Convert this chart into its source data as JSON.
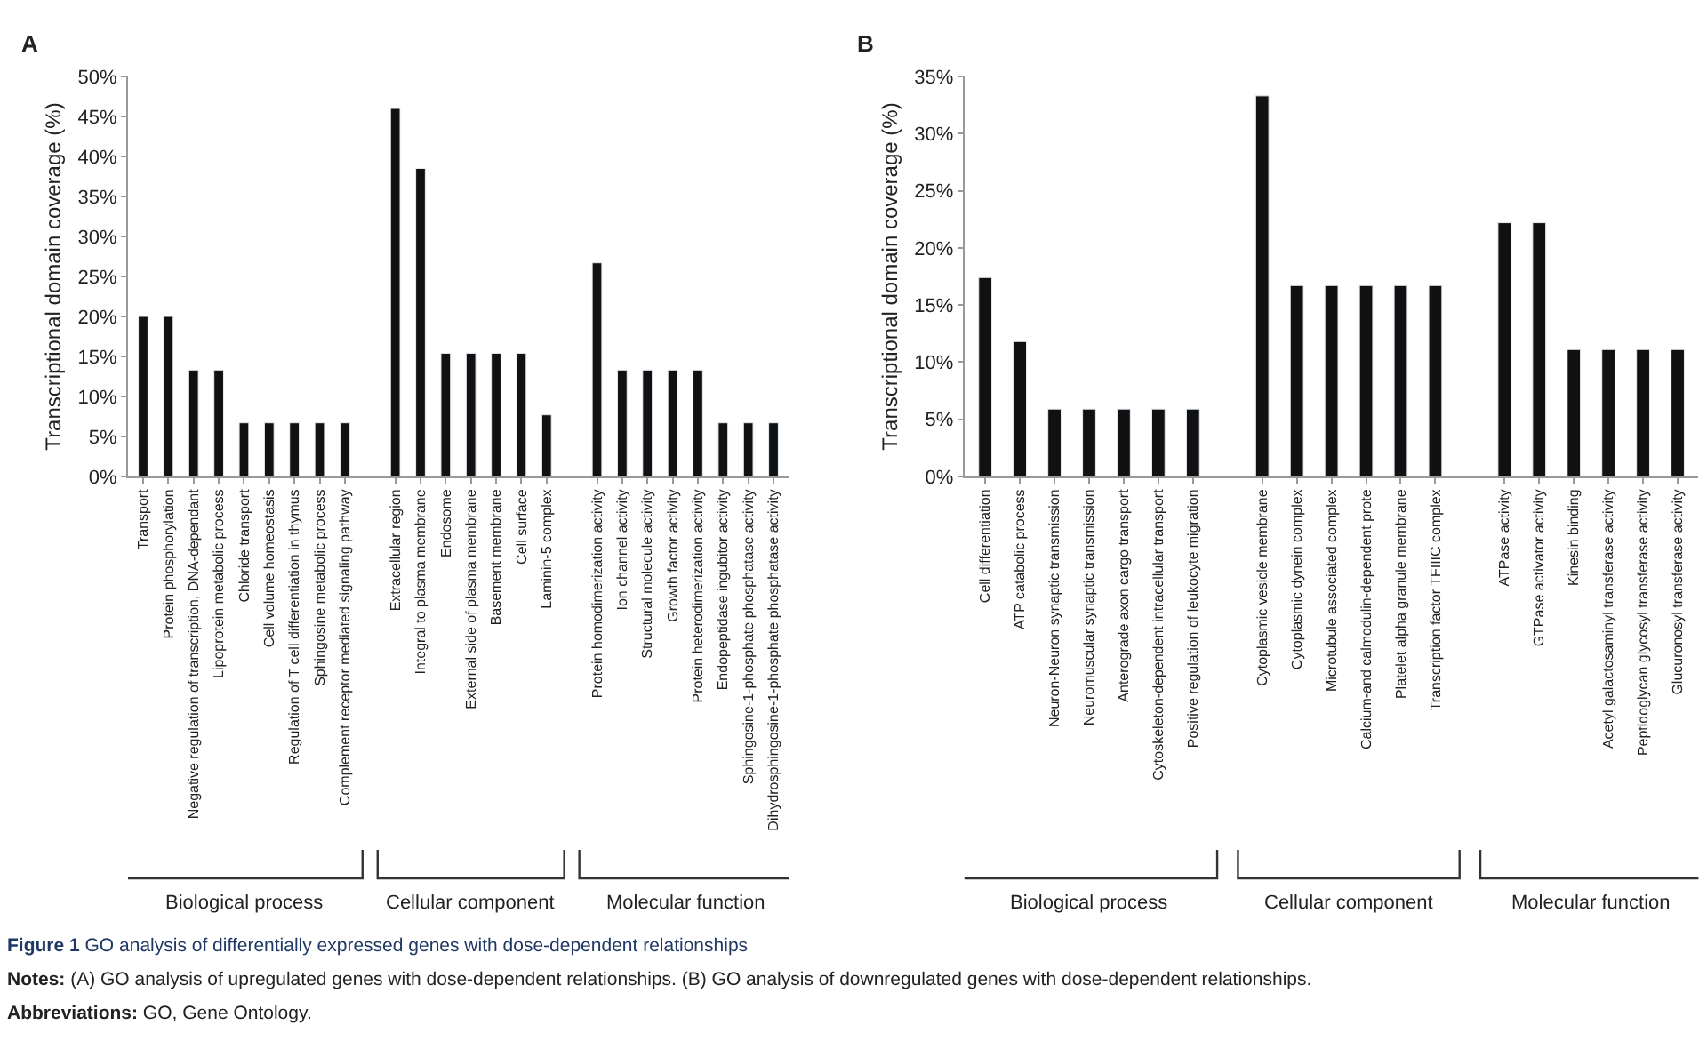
{
  "chart_data": [
    {
      "type": "bar",
      "title": "A",
      "ylabel": "Transcriptional domain coverage (%)",
      "categories": [
        "Transport",
        "Protein phosphorylation",
        "Negative regulation of transcription, DNA-dependant",
        "Lipoprotein metabolic process",
        "Chloride transport",
        "Cell volume homeostasis",
        "Regulation of T cell differentiation in thymus",
        "Sphingosine metabolic process",
        "Complement receptor mediated signaling pathway",
        null,
        "Extracellular region",
        "Integral to plasma membrane",
        "Endosome",
        "External side of plasma membrane",
        "Basement membrane",
        "Cell surface",
        "Laminin-5 complex",
        null,
        "Protein homodimerization activity",
        "Ion channel activity",
        "Structural molecule activity",
        "Growth factor activity",
        "Protein heterodimerization activity",
        "Endopeptidase ingubitor activity",
        "Sphingosine-1-phosphate phosphatase activity",
        "Dihydrosphingosine-1-phosphate phosphatase activity"
      ],
      "values": [
        20,
        20,
        13.3,
        13.3,
        6.7,
        6.7,
        6.7,
        6.7,
        6.7,
        null,
        46,
        38.5,
        15.4,
        15.4,
        15.4,
        15.4,
        7.7,
        null,
        26.7,
        13.3,
        13.3,
        13.3,
        13.3,
        6.7,
        6.7,
        6.7
      ],
      "color": "#111111",
      "ylim": [
        0,
        50
      ],
      "yticks": [
        {
          "value": 0,
          "label": "0%"
        },
        {
          "value": 5,
          "label": "5%"
        },
        {
          "value": 10,
          "label": "10%"
        },
        {
          "value": 15,
          "label": "15%"
        },
        {
          "value": 20,
          "label": "20%"
        },
        {
          "value": 25,
          "label": "25%"
        },
        {
          "value": 30,
          "label": "30%"
        },
        {
          "value": 35,
          "label": "35%"
        },
        {
          "value": 40,
          "label": "40%"
        },
        {
          "value": 45,
          "label": "45%"
        },
        {
          "value": 50,
          "label": "50%"
        }
      ],
      "legend": false,
      "annotations": [
        "Biological process",
        "Cellular component",
        "Molecular function",
        "Figure 1 GO analysis of differentially expressed genes with dose-dependent relationships",
        "Notes: (A) GO analysis of upregulated genes with dose-dependent relationships. (B) GO analysis of downregulated genes with dose-dependent relationships.",
        "Abbreviations: GO, Gene Ontology."
      ]
    },
    {
      "type": "bar",
      "title": "B",
      "ylabel": "Transcriptional domain coverage (%)",
      "categories": [
        "Cell differentiation",
        "ATP catabolic process",
        "Neuron-Neuron synaptic transmission",
        "Neuromuscular synaptic transmission",
        "Anterograde axon cargo transport",
        "Cytoskeleton-dependent intracellular transport",
        "Positive regulation of leukocyte migration",
        null,
        "Cytoplasmic vesicle membrane",
        "Cytoplasmic dynein complex",
        "Microtubule associated complex",
        "Calcium-and calmodulin-dependent prote",
        "Platelet alpha granule membrane",
        "Transcription factor TFIIIC complex",
        null,
        "ATPase activity",
        "GTPase activator activity",
        "Kinesin binding",
        "Acetyl galactosaminyl transferase activity",
        "Peptidoglycan glycosyl transferase activity",
        "Glucuronosyl transferase activity"
      ],
      "values": [
        17.4,
        11.8,
        5.9,
        5.9,
        5.9,
        5.9,
        5.9,
        null,
        33.3,
        16.7,
        16.7,
        16.7,
        16.7,
        16.7,
        null,
        22.2,
        22.2,
        11.1,
        11.1,
        11.1,
        11.1
      ],
      "color": "#111111",
      "ylim": [
        0,
        35
      ],
      "yticks": [
        {
          "value": 0,
          "label": "0%"
        },
        {
          "value": 5,
          "label": "5%"
        },
        {
          "value": 10,
          "label": "10%"
        },
        {
          "value": 15,
          "label": "15%"
        },
        {
          "value": 20,
          "label": "20%"
        },
        {
          "value": 25,
          "label": "25%"
        },
        {
          "value": 30,
          "label": "30%"
        },
        {
          "value": 35,
          "label": "35%"
        }
      ],
      "legend": false,
      "annotations": [
        "Biological process",
        "Cellular component",
        "Molecular function"
      ]
    }
  ]
}
